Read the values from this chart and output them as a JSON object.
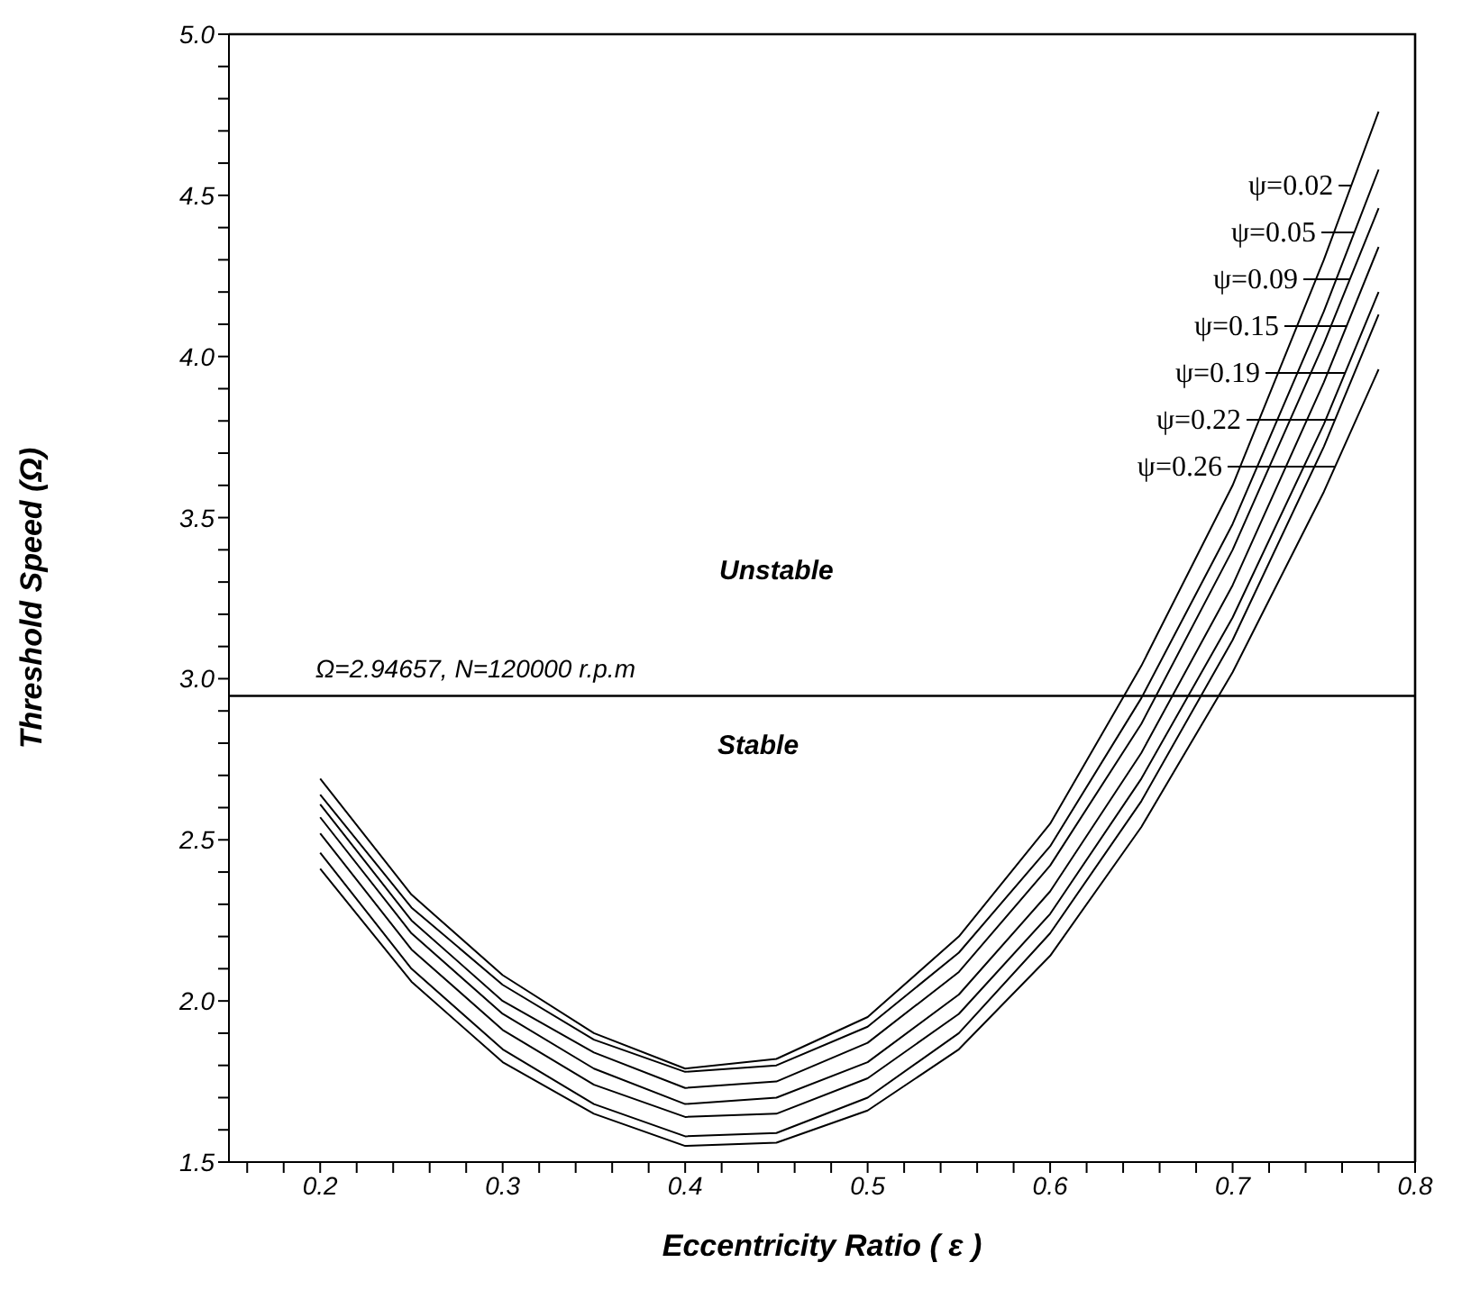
{
  "chart_data": {
    "type": "line",
    "xlabel": "Eccentricity Ratio ( ε )",
    "ylabel": "Threshold Speed (Ω)",
    "x": [
      0.2,
      0.25,
      0.3,
      0.35,
      0.4,
      0.45,
      0.5,
      0.55,
      0.6,
      0.65,
      0.7,
      0.75,
      0.78
    ],
    "series": [
      {
        "name": "ψ=0.02",
        "color": "#000000",
        "values": [
          2.69,
          2.33,
          2.08,
          1.9,
          1.79,
          1.82,
          1.95,
          2.2,
          2.55,
          3.04,
          3.6,
          4.3,
          4.76
        ]
      },
      {
        "name": "ψ=0.05",
        "color": "#000000",
        "values": [
          2.64,
          2.29,
          2.05,
          1.88,
          1.78,
          1.8,
          1.92,
          2.15,
          2.48,
          2.94,
          3.48,
          4.14,
          4.58
        ]
      },
      {
        "name": "ψ=0.09",
        "color": "#000000",
        "values": [
          2.61,
          2.25,
          2.0,
          1.84,
          1.73,
          1.75,
          1.87,
          2.09,
          2.42,
          2.86,
          3.4,
          4.04,
          4.46
        ]
      },
      {
        "name": "ψ=0.15",
        "color": "#000000",
        "values": [
          2.57,
          2.21,
          1.96,
          1.79,
          1.68,
          1.7,
          1.81,
          2.02,
          2.34,
          2.77,
          3.29,
          3.92,
          4.34
        ]
      },
      {
        "name": "ψ=0.19",
        "color": "#000000",
        "values": [
          2.52,
          2.16,
          1.91,
          1.74,
          1.64,
          1.65,
          1.76,
          1.96,
          2.27,
          2.69,
          3.19,
          3.79,
          4.2
        ]
      },
      {
        "name": "ψ=0.22",
        "color": "#000000",
        "values": [
          2.46,
          2.1,
          1.85,
          1.68,
          1.58,
          1.59,
          1.7,
          1.9,
          2.21,
          2.62,
          3.12,
          3.72,
          4.13
        ]
      },
      {
        "name": "ψ=0.26",
        "color": "#000000",
        "values": [
          2.41,
          2.06,
          1.81,
          1.65,
          1.55,
          1.56,
          1.66,
          1.85,
          2.14,
          2.54,
          3.02,
          3.58,
          3.96
        ]
      }
    ],
    "xlim": [
      0.15,
      0.8
    ],
    "xticks": [
      {
        "value": 0.16,
        "label": null
      },
      {
        "value": 0.18,
        "label": null
      },
      {
        "value": 0.2,
        "label": "0.2"
      },
      {
        "value": 0.22,
        "label": null
      },
      {
        "value": 0.24,
        "label": null
      },
      {
        "value": 0.26,
        "label": null
      },
      {
        "value": 0.28,
        "label": null
      },
      {
        "value": 0.3,
        "label": "0.3"
      },
      {
        "value": 0.32,
        "label": null
      },
      {
        "value": 0.34,
        "label": null
      },
      {
        "value": 0.36,
        "label": null
      },
      {
        "value": 0.38,
        "label": null
      },
      {
        "value": 0.4,
        "label": "0.4"
      },
      {
        "value": 0.42,
        "label": null
      },
      {
        "value": 0.44,
        "label": null
      },
      {
        "value": 0.46,
        "label": null
      },
      {
        "value": 0.48,
        "label": null
      },
      {
        "value": 0.5,
        "label": "0.5"
      },
      {
        "value": 0.52,
        "label": null
      },
      {
        "value": 0.54,
        "label": null
      },
      {
        "value": 0.56,
        "label": null
      },
      {
        "value": 0.58,
        "label": null
      },
      {
        "value": 0.6,
        "label": "0.6"
      },
      {
        "value": 0.62,
        "label": null
      },
      {
        "value": 0.64,
        "label": null
      },
      {
        "value": 0.66,
        "label": null
      },
      {
        "value": 0.68,
        "label": null
      },
      {
        "value": 0.7,
        "label": "0.7"
      },
      {
        "value": 0.72,
        "label": null
      },
      {
        "value": 0.74,
        "label": null
      },
      {
        "value": 0.76,
        "label": null
      },
      {
        "value": 0.78,
        "label": null
      },
      {
        "value": 0.8,
        "label": "0.8"
      }
    ],
    "ylim": [
      1.5,
      5.0
    ],
    "yticks": [
      {
        "value": 1.5,
        "label": "1.5"
      },
      {
        "value": 1.6,
        "label": null
      },
      {
        "value": 1.7,
        "label": null
      },
      {
        "value": 1.8,
        "label": null
      },
      {
        "value": 1.9,
        "label": null
      },
      {
        "value": 2.0,
        "label": "2.0"
      },
      {
        "value": 2.1,
        "label": null
      },
      {
        "value": 2.2,
        "label": null
      },
      {
        "value": 2.3,
        "label": null
      },
      {
        "value": 2.4,
        "label": null
      },
      {
        "value": 2.5,
        "label": "2.5"
      },
      {
        "value": 2.6,
        "label": null
      },
      {
        "value": 2.7,
        "label": null
      },
      {
        "value": 2.8,
        "label": null
      },
      {
        "value": 2.9,
        "label": null
      },
      {
        "value": 3.0,
        "label": "3.0"
      },
      {
        "value": 3.1,
        "label": null
      },
      {
        "value": 3.2,
        "label": null
      },
      {
        "value": 3.3,
        "label": null
      },
      {
        "value": 3.4,
        "label": null
      },
      {
        "value": 3.5,
        "label": "3.5"
      },
      {
        "value": 3.6,
        "label": null
      },
      {
        "value": 3.7,
        "label": null
      },
      {
        "value": 3.8,
        "label": null
      },
      {
        "value": 3.9,
        "label": null
      },
      {
        "value": 4.0,
        "label": "4.0"
      },
      {
        "value": 4.1,
        "label": null
      },
      {
        "value": 4.2,
        "label": null
      },
      {
        "value": 4.3,
        "label": null
      },
      {
        "value": 4.4,
        "label": null
      },
      {
        "value": 4.5,
        "label": "4.5"
      },
      {
        "value": 4.6,
        "label": null
      },
      {
        "value": 4.7,
        "label": null
      },
      {
        "value": 4.8,
        "label": null
      },
      {
        "value": 4.9,
        "label": null
      },
      {
        "value": 5.0,
        "label": "5.0"
      }
    ],
    "ref_lines": [
      {
        "axis": "y",
        "value": 2.94657,
        "label": "Ω=2.94657,  N=120000 r.p.m",
        "color": "#000000",
        "line_style": "solid"
      }
    ],
    "annotations": [
      "Unstable",
      "Stable"
    ],
    "legend": "top right",
    "marker": "none",
    "line_style": "solid"
  }
}
